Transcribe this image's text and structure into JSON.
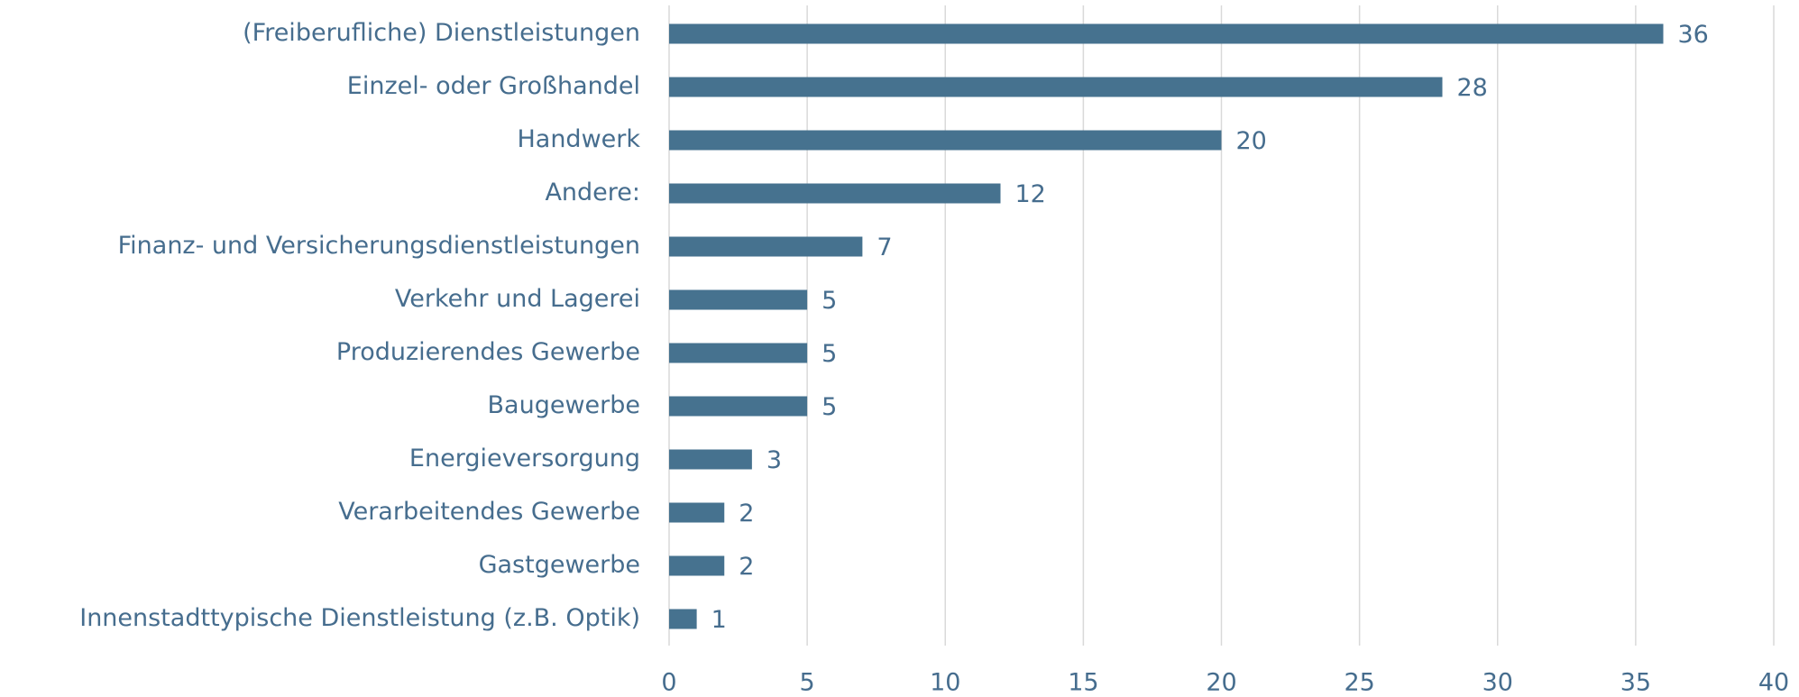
{
  "chart_data": {
    "type": "barh",
    "categories": [
      "(Freiberufliche) Dienstleistungen",
      "Einzel- oder Großhandel",
      "Handwerk",
      "Andere:",
      "Finanz- und Versicherungsdienstleistungen",
      "Verkehr und Lagerei",
      "Produzierendes Gewerbe",
      "Baugewerbe",
      "Energieversorgung",
      "Verarbeitendes Gewerbe",
      "Gastgewerbe",
      "Innenstadttypische Dienstleistung (z.B. Optik)"
    ],
    "values": [
      36,
      28,
      20,
      12,
      7,
      5,
      5,
      5,
      3,
      2,
      2,
      1
    ],
    "color": "#46728f",
    "xlim": [
      0,
      40
    ],
    "xticks": [
      0,
      5,
      10,
      15,
      20,
      25,
      30,
      35,
      40
    ],
    "grid": true
  }
}
